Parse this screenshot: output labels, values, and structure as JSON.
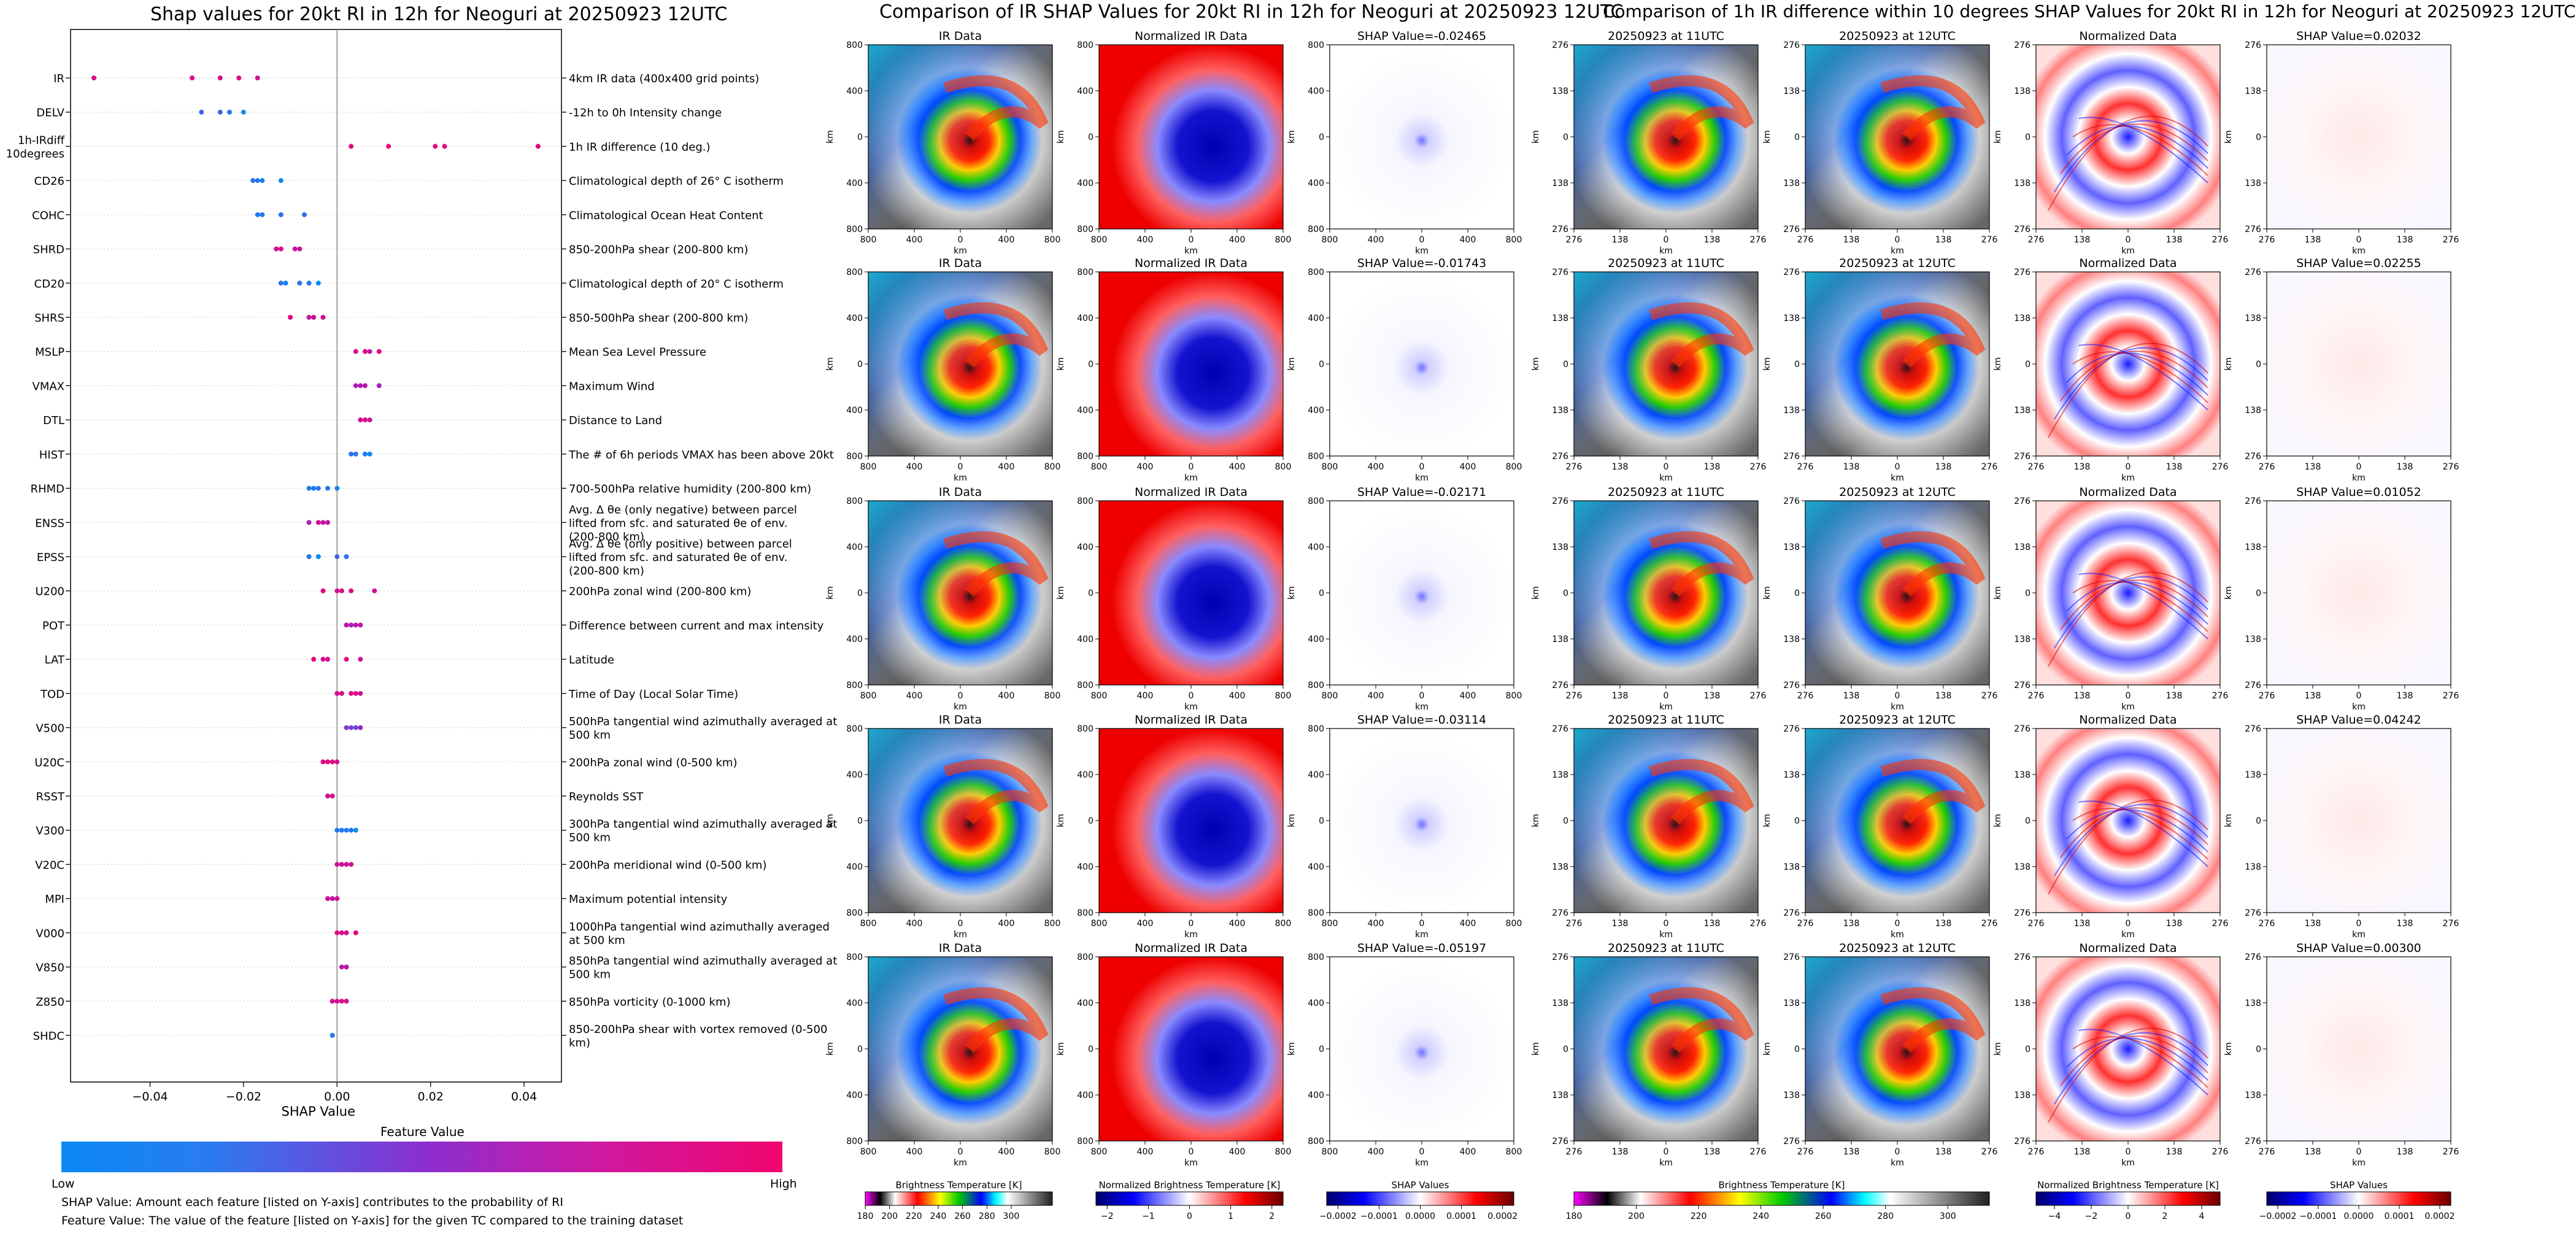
{
  "left_panel": {
    "title": "Shap values for 20kt RI in 12h for Neoguri at 20250923 12UTC",
    "xlabel": "SHAP Value",
    "xticks": [
      "−0.04",
      "−0.02",
      "0.00",
      "0.02",
      "0.04"
    ],
    "colorbar_title": "Feature Value",
    "colorbar_low": "Low",
    "colorbar_high": "High",
    "note1": "SHAP Value: Amount each feature [listed on Y-axis] contributes to the probability of RI",
    "note2": "Feature Value: The value of the feature [listed on Y-axis] for the given TC compared to the training dataset",
    "colors": {
      "low": "#0a8af5",
      "mid": "#a020c8",
      "high": "#f0056e"
    }
  },
  "chart_data": {
    "type": "scatter",
    "title": "Shap values for 20kt RI in 12h for Neoguri at 20250923 12UTC",
    "xlabel": "SHAP Value",
    "xlim": [
      -0.057,
      0.048
    ],
    "features": [
      {
        "name": "IR",
        "desc": "4km IR data (400x400 grid points)",
        "points": [
          [
            -0.052,
            0.9
          ],
          [
            -0.031,
            0.9
          ],
          [
            -0.025,
            0.8
          ],
          [
            -0.021,
            0.9
          ],
          [
            -0.017,
            0.8
          ]
        ]
      },
      {
        "name": "DELV",
        "desc": "-12h to 0h Intensity change",
        "points": [
          [
            -0.029,
            0.2
          ],
          [
            -0.025,
            0.2
          ],
          [
            -0.023,
            0.1
          ],
          [
            -0.02,
            0.0
          ]
        ]
      },
      {
        "name": "1h-IRdiff\n10degrees",
        "desc": "1h IR difference (10 deg.)",
        "points": [
          [
            0.003,
            0.9
          ],
          [
            0.011,
            0.9
          ],
          [
            0.021,
            0.85
          ],
          [
            0.023,
            0.9
          ],
          [
            0.043,
            0.9
          ]
        ]
      },
      {
        "name": "CD26",
        "desc": "Climatological depth of 26° C isotherm",
        "points": [
          [
            -0.018,
            0.1
          ],
          [
            -0.017,
            0.1
          ],
          [
            -0.016,
            0.05
          ],
          [
            -0.012,
            0.0
          ]
        ]
      },
      {
        "name": "COHC",
        "desc": "Climatological Ocean Heat Content",
        "points": [
          [
            -0.017,
            0.05
          ],
          [
            -0.016,
            0.1
          ],
          [
            -0.012,
            0.1
          ],
          [
            -0.007,
            0.1
          ]
        ]
      },
      {
        "name": "SHRD",
        "desc": "850-200hPa shear (200-800 km)",
        "points": [
          [
            -0.013,
            0.8
          ],
          [
            -0.012,
            0.85
          ],
          [
            -0.009,
            0.7
          ],
          [
            -0.008,
            0.8
          ]
        ]
      },
      {
        "name": "CD20",
        "desc": "Climatological depth of 20° C isotherm",
        "points": [
          [
            -0.012,
            0.1
          ],
          [
            -0.011,
            0.05
          ],
          [
            -0.008,
            0.1
          ],
          [
            -0.006,
            0.1
          ],
          [
            -0.004,
            0.0
          ]
        ]
      },
      {
        "name": "SHRS",
        "desc": "850-500hPa shear (200-800 km)",
        "points": [
          [
            -0.01,
            0.9
          ],
          [
            -0.006,
            0.7
          ],
          [
            -0.005,
            0.8
          ],
          [
            -0.003,
            0.85
          ]
        ]
      },
      {
        "name": "MSLP",
        "desc": "Mean Sea Level Pressure",
        "points": [
          [
            0.004,
            0.8
          ],
          [
            0.006,
            0.85
          ],
          [
            0.007,
            0.7
          ],
          [
            0.009,
            0.9
          ]
        ]
      },
      {
        "name": "VMAX",
        "desc": "Maximum Wind",
        "points": [
          [
            0.004,
            0.6
          ],
          [
            0.005,
            0.55
          ],
          [
            0.006,
            0.7
          ],
          [
            0.009,
            0.5
          ]
        ]
      },
      {
        "name": "DTL",
        "desc": "Distance to Land",
        "points": [
          [
            0.005,
            0.8
          ],
          [
            0.006,
            0.85
          ],
          [
            0.007,
            0.75
          ]
        ]
      },
      {
        "name": "HIST",
        "desc": "The # of 6h periods VMAX has been above 20kt",
        "points": [
          [
            0.003,
            0.1
          ],
          [
            0.004,
            0.1
          ],
          [
            0.006,
            0.05
          ],
          [
            0.007,
            0.0
          ]
        ]
      },
      {
        "name": "RHMD",
        "desc": "700-500hPa relative humidity (200-800 km)",
        "points": [
          [
            -0.006,
            0.05
          ],
          [
            -0.005,
            0.1
          ],
          [
            -0.004,
            0.1
          ],
          [
            -0.002,
            0.1
          ],
          [
            0.0,
            0.0
          ]
        ]
      },
      {
        "name": "ENSS",
        "desc": "Avg. Δ θe (only negative) between parcel lifted from sfc. and saturated θe of env. (200-800 km)",
        "points": [
          [
            -0.006,
            0.6
          ],
          [
            -0.004,
            0.8
          ],
          [
            -0.003,
            0.7
          ],
          [
            -0.002,
            0.75
          ]
        ]
      },
      {
        "name": "EPSS",
        "desc": "Avg. Δ θe (only positive) between parcel lifted from sfc. and saturated θe of env. (200-800 km)",
        "points": [
          [
            -0.006,
            0.1
          ],
          [
            -0.004,
            0.0
          ],
          [
            0.0,
            0.2
          ],
          [
            0.002,
            0.1
          ]
        ]
      },
      {
        "name": "U200",
        "desc": "200hPa zonal wind (200-800 km)",
        "points": [
          [
            -0.003,
            0.9
          ],
          [
            0.0,
            0.8
          ],
          [
            0.001,
            0.85
          ],
          [
            0.003,
            0.9
          ],
          [
            0.008,
            0.8
          ]
        ]
      },
      {
        "name": "POT",
        "desc": "Difference between current and max intensity",
        "points": [
          [
            0.002,
            0.7
          ],
          [
            0.003,
            0.6
          ],
          [
            0.004,
            0.65
          ],
          [
            0.005,
            0.7
          ]
        ]
      },
      {
        "name": "LAT",
        "desc": "Latitude",
        "points": [
          [
            -0.005,
            0.9
          ],
          [
            -0.003,
            0.8
          ],
          [
            -0.002,
            0.85
          ],
          [
            0.002,
            0.9
          ],
          [
            0.005,
            0.8
          ]
        ]
      },
      {
        "name": "TOD",
        "desc": "Time of Day (Local Solar Time)",
        "points": [
          [
            0.0,
            0.8
          ],
          [
            0.001,
            0.9
          ],
          [
            0.003,
            0.85
          ],
          [
            0.004,
            0.9
          ],
          [
            0.005,
            0.8
          ]
        ]
      },
      {
        "name": "V500",
        "desc": "500hPa tangential wind azimuthally averaged at 500 km",
        "points": [
          [
            0.002,
            0.4
          ],
          [
            0.003,
            0.35
          ],
          [
            0.004,
            0.3
          ],
          [
            0.005,
            0.5
          ]
        ]
      },
      {
        "name": "U20C",
        "desc": "200hPa zonal wind (0-500 km)",
        "points": [
          [
            -0.003,
            0.9
          ],
          [
            -0.002,
            0.85
          ],
          [
            -0.001,
            0.9
          ],
          [
            0.0,
            0.8
          ]
        ]
      },
      {
        "name": "RSST",
        "desc": "Reynolds SST",
        "points": [
          [
            -0.002,
            0.8
          ],
          [
            -0.001,
            0.85
          ]
        ]
      },
      {
        "name": "V300",
        "desc": "300hPa tangential wind azimuthally averaged at 500 km",
        "points": [
          [
            0.0,
            0.1
          ],
          [
            0.001,
            0.1
          ],
          [
            0.002,
            0.05
          ],
          [
            0.003,
            0.1
          ],
          [
            0.004,
            0.0
          ]
        ]
      },
      {
        "name": "V20C",
        "desc": "200hPa meridional wind (0-500 km)",
        "points": [
          [
            0.0,
            0.7
          ],
          [
            0.001,
            0.8
          ],
          [
            0.002,
            0.85
          ],
          [
            0.003,
            0.75
          ]
        ]
      },
      {
        "name": "MPI",
        "desc": "Maximum potential intensity",
        "points": [
          [
            -0.002,
            0.8
          ],
          [
            -0.001,
            0.7
          ],
          [
            0.0,
            0.85
          ]
        ]
      },
      {
        "name": "V000",
        "desc": "1000hPa tangential wind azimuthally averaged at 500 km",
        "points": [
          [
            0.0,
            0.9
          ],
          [
            0.001,
            0.85
          ],
          [
            0.002,
            0.8
          ],
          [
            0.004,
            0.9
          ]
        ]
      },
      {
        "name": "V850",
        "desc": "850hPa tangential wind azimuthally averaged at 500 km",
        "points": [
          [
            0.001,
            0.6
          ],
          [
            0.002,
            0.55
          ],
          [
            0.002,
            0.7
          ]
        ]
      },
      {
        "name": "Z850",
        "desc": "850hPa vorticity (0-1000 km)",
        "points": [
          [
            -0.001,
            0.85
          ],
          [
            0.0,
            0.8
          ],
          [
            0.001,
            0.9
          ],
          [
            0.002,
            0.8
          ]
        ]
      },
      {
        "name": "SHDC",
        "desc": "850-200hPa shear with vortex removed (0-500 km)",
        "points": [
          [
            -0.001,
            0.1
          ]
        ]
      }
    ]
  },
  "comparison1": {
    "title": "Comparison of IR SHAP Values for 20kt RI in 12h for Neoguri at 20250923 12UTC",
    "col_titles": [
      "IR Data",
      "Normalized IR Data"
    ],
    "shap_titles": [
      "SHAP Value=-0.02465",
      "SHAP Value=-0.01743",
      "SHAP Value=-0.02171",
      "SHAP Value=-0.03114",
      "SHAP Value=-0.05197"
    ],
    "xticks": [
      "800",
      "400",
      "0",
      "400",
      "800"
    ],
    "yticks": [
      "800",
      "400",
      "0",
      "400",
      "800"
    ],
    "axis_label": "km",
    "colorbars": [
      {
        "label": "Brightness Temperature [K]",
        "ticks": [
          "180",
          "200",
          "220",
          "240",
          "260",
          "280",
          "300"
        ]
      },
      {
        "label": "Normalized Brightness Temperature [K]",
        "ticks": [
          "−2",
          "−1",
          "0",
          "1",
          "2"
        ]
      },
      {
        "label": "SHAP Values",
        "ticks": [
          "−0.0002",
          "−0.0001",
          "0.0000",
          "0.0001",
          "0.0002"
        ]
      }
    ]
  },
  "comparison2": {
    "title": "Comparison of 1h IR difference within 10 degrees SHAP Values for 20kt RI in 12h for Neoguri at 20250923 12UTC",
    "col_titles": [
      "20250923 at 11UTC",
      "20250923 at 12UTC",
      "Normalized Data"
    ],
    "shap_titles": [
      "SHAP Value=0.02032",
      "SHAP Value=0.02255",
      "SHAP Value=0.01052",
      "SHAP Value=0.04242",
      "SHAP Value=0.00300"
    ],
    "xticks": [
      "276",
      "138",
      "0",
      "138",
      "276"
    ],
    "yticks": [
      "276",
      "138",
      "0",
      "138",
      "276"
    ],
    "axis_label": "km",
    "colorbars": [
      {
        "label": "Brightness Temperature [K]",
        "ticks": [
          "180",
          "200",
          "220",
          "240",
          "260",
          "280",
          "300"
        ]
      },
      {
        "label": "Normalized Brightness Temperature [K]",
        "ticks": [
          "−4",
          "−2",
          "0",
          "2",
          "4"
        ]
      },
      {
        "label": "SHAP Values",
        "ticks": [
          "−0.0002",
          "−0.0001",
          "0.0000",
          "0.0001",
          "0.0002"
        ]
      }
    ]
  }
}
